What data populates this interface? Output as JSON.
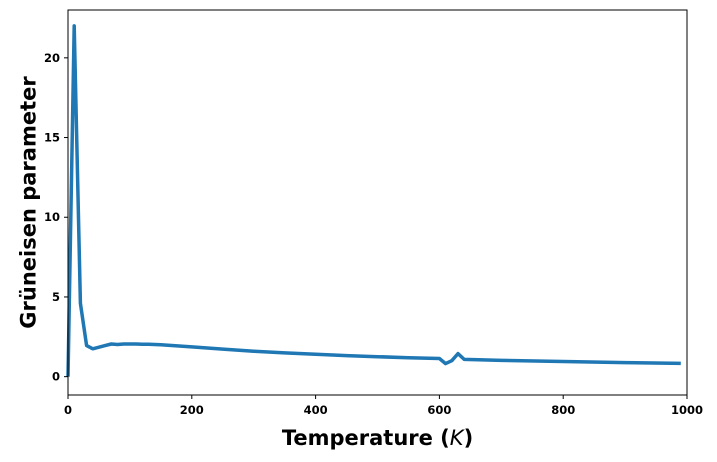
{
  "chart_data": {
    "type": "line",
    "title": "",
    "xlabel_text": "Temperature (",
    "xlabel_var": "K",
    "xlabel_close": ")",
    "ylabel": "Grüneisen parameter",
    "xlim": [
      0,
      1000
    ],
    "ylim": [
      -1.15,
      23.0
    ],
    "xticks": [
      0,
      200,
      400,
      600,
      800,
      1000
    ],
    "yticks": [
      0,
      5,
      10,
      15,
      20
    ],
    "grid": false,
    "line_color": "#1f77b4",
    "series": [
      {
        "x": [
          0,
          10,
          20,
          30,
          40,
          50,
          60,
          70,
          80,
          90,
          100,
          110,
          120,
          130,
          140,
          150,
          200,
          250,
          300,
          350,
          400,
          450,
          500,
          550,
          600,
          610,
          620,
          630,
          640,
          700,
          800,
          900,
          990
        ],
        "y": [
          0,
          22.0,
          4.6,
          1.95,
          1.75,
          1.85,
          1.95,
          2.05,
          2.02,
          2.05,
          2.05,
          2.05,
          2.03,
          2.03,
          2.02,
          2.0,
          1.87,
          1.73,
          1.6,
          1.49,
          1.4,
          1.32,
          1.25,
          1.19,
          1.14,
          0.82,
          1.0,
          1.45,
          1.08,
          1.02,
          0.95,
          0.88,
          0.83
        ]
      }
    ]
  }
}
